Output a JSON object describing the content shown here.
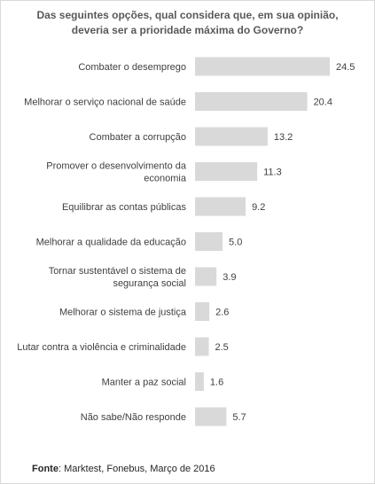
{
  "chart_data": {
    "type": "bar",
    "orientation": "horizontal",
    "title_lines": [
      "Das seguintes opções, qual considera que, em sua opinião,",
      "deveria ser a prioridade máxima do Governo?"
    ],
    "categories": [
      [
        "Combater o desemprego"
      ],
      [
        "Melhorar o serviço nacional de saúde"
      ],
      [
        "Combater a corrupção"
      ],
      [
        "Promover o desenvolvimento da",
        "economia"
      ],
      [
        "Equilibrar as contas públicas"
      ],
      [
        "Melhorar a qualidade da educação"
      ],
      [
        "Tornar sustentável o sistema de",
        "segurança social"
      ],
      [
        "Melhorar o sistema de justiça"
      ],
      [
        "Lutar contra a violência e criminalidade"
      ],
      [
        "Manter a paz social"
      ],
      [
        "Não sabe/Não responde"
      ]
    ],
    "values": [
      24.5,
      20.4,
      13.2,
      11.3,
      9.2,
      5.0,
      3.9,
      2.6,
      2.5,
      1.6,
      5.7
    ],
    "value_labels": [
      "24.5",
      "20.4",
      "13.2",
      "11.3",
      "9.2",
      "5.0",
      "3.9",
      "2.6",
      "2.5",
      "1.6",
      "5.7"
    ],
    "bar_color": "#d9d9d9",
    "xlim": [
      0,
      24.5
    ],
    "grid": false,
    "legend": false
  },
  "source": {
    "label": "Fonte",
    "text": ": Marktest, Fonebus, Março de 2016"
  }
}
